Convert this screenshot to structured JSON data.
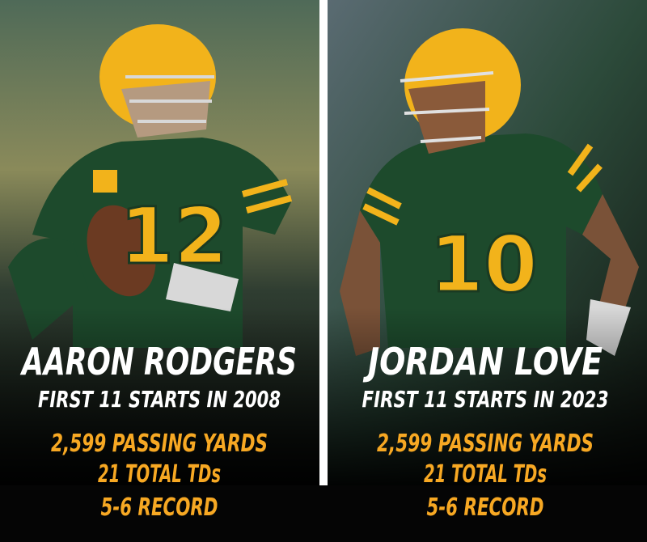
{
  "panels": [
    {
      "name": "AARON RODGERS",
      "subtitle": "FIRST 11 STARTS IN 2008",
      "jersey": "12",
      "stats": [
        "2,599 PASSING YARDS",
        "21 TOTAL TDs",
        "5-6 RECORD"
      ]
    },
    {
      "name": "JORDAN LOVE",
      "subtitle": "FIRST 11 STARTS IN 2023",
      "jersey": "10",
      "stats": [
        "2,599 PASSING YARDS",
        "21 TOTAL TDs",
        "5-6 RECORD"
      ]
    }
  ]
}
